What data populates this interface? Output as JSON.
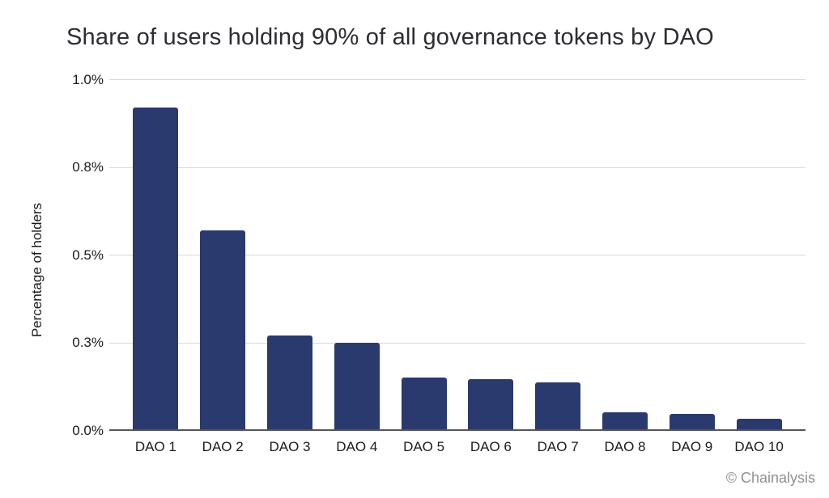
{
  "title": "Share of users holding 90% of all governance tokens by DAO",
  "attribution": "© Chainalysis",
  "colors": {
    "background": "#ffffff",
    "bar": "#2a396e",
    "grid": "#d9d9d9",
    "baseline": "#55565a",
    "title_text": "#2c2c34",
    "tick_text": "#1b1b1b",
    "attribution_text": "#8f9194"
  },
  "chart_data": {
    "type": "bar",
    "title": "Share of users holding 90% of all governance tokens by DAO",
    "xlabel": "",
    "ylabel": "Percentage of holders",
    "categories": [
      "DAO 1",
      "DAO 2",
      "DAO 3",
      "DAO 4",
      "DAO 5",
      "DAO 6",
      "DAO 7",
      "DAO 8",
      "DAO 9",
      "DAO 10"
    ],
    "values": [
      0.92,
      0.57,
      0.27,
      0.25,
      0.15,
      0.145,
      0.135,
      0.051,
      0.047,
      0.032
    ],
    "unit": "%",
    "ylim": [
      0,
      1.0
    ],
    "yticks": {
      "values": [
        0,
        0.25,
        0.5,
        0.75,
        1.0
      ],
      "labels": [
        "0.0%",
        "0.3%",
        "0.5%",
        "0.8%",
        "1.0%"
      ]
    },
    "grid": "horizontal",
    "legend": "none"
  }
}
